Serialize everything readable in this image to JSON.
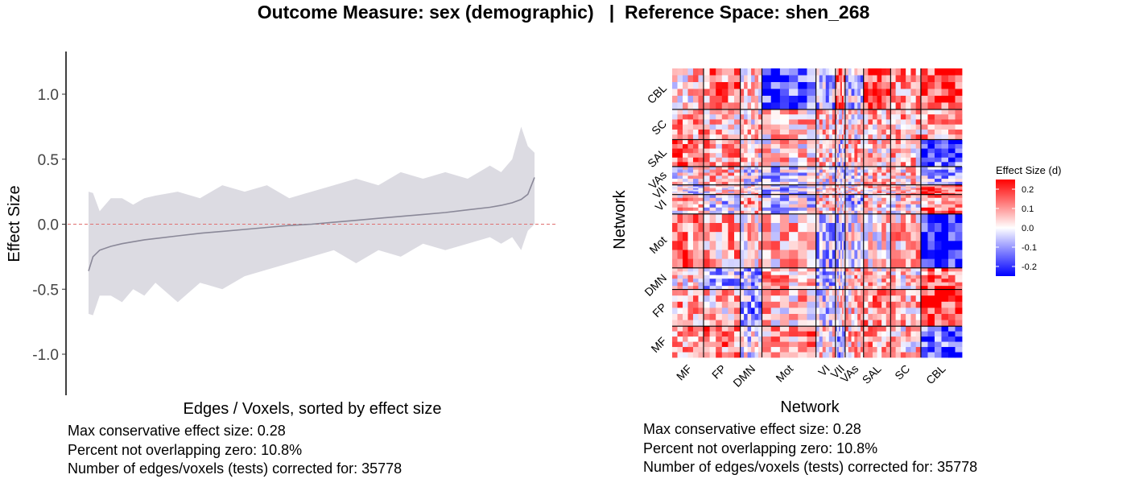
{
  "title": "Outcome Measure: sex (demographic)   |  Reference Space: shen_268",
  "chart_data": [
    {
      "type": "area",
      "xlabel": "Edges / Voxels, sorted by effect size",
      "ylabel": "Effect Size",
      "ylim": [
        -1.3,
        1.3
      ],
      "yticks": [
        1.0,
        0.5,
        0.0,
        -0.5,
        -1.0
      ],
      "ytick_labels": [
        "1.0",
        "0.5",
        "0.0",
        "-0.5",
        "-1.0"
      ],
      "reference_line": 0.0,
      "x": [
        0,
        0.01,
        0.025,
        0.05,
        0.075,
        0.1,
        0.125,
        0.15,
        0.2,
        0.25,
        0.3,
        0.35,
        0.4,
        0.45,
        0.5,
        0.55,
        0.6,
        0.65,
        0.7,
        0.75,
        0.8,
        0.85,
        0.9,
        0.925,
        0.95,
        0.97,
        0.985,
        1.0
      ],
      "estimate": [
        -0.36,
        -0.25,
        -0.2,
        -0.17,
        -0.15,
        -0.135,
        -0.12,
        -0.11,
        -0.09,
        -0.07,
        -0.055,
        -0.04,
        -0.025,
        -0.01,
        0.0,
        0.015,
        0.03,
        0.045,
        0.06,
        0.075,
        0.09,
        0.11,
        0.13,
        0.145,
        0.165,
        0.19,
        0.23,
        0.36
      ],
      "upper": [
        0.25,
        0.24,
        0.1,
        0.2,
        0.2,
        0.15,
        0.2,
        0.22,
        0.25,
        0.2,
        0.3,
        0.25,
        0.3,
        0.2,
        0.25,
        0.3,
        0.35,
        0.3,
        0.4,
        0.35,
        0.4,
        0.35,
        0.45,
        0.4,
        0.5,
        0.75,
        0.6,
        0.55
      ],
      "lower": [
        -0.69,
        -0.7,
        -0.55,
        -0.55,
        -0.6,
        -0.5,
        -0.55,
        -0.45,
        -0.6,
        -0.45,
        -0.5,
        -0.4,
        -0.35,
        -0.3,
        -0.25,
        -0.2,
        -0.3,
        -0.2,
        -0.25,
        -0.15,
        -0.2,
        -0.15,
        -0.1,
        -0.15,
        -0.1,
        -0.2,
        -0.05,
        0.0
      ],
      "series_color": "#8a8898",
      "band_color": "#dcdbe2",
      "reference_line_color": "#e07070",
      "stats": [
        "Max conservative effect size: 0.28",
        "Percent not overlapping zero: 10.8%",
        "Number of edges/voxels (tests) corrected for: 35778"
      ]
    },
    {
      "type": "heatmap",
      "xlabel": "Network",
      "ylabel": "Network",
      "networks": [
        "MF",
        "FP",
        "DMN",
        "Mot",
        "VI",
        "VII",
        "VAs",
        "SAL",
        "SC",
        "CBL"
      ],
      "network_sizes": [
        29,
        34,
        20,
        50,
        18,
        9,
        17,
        25,
        28,
        38
      ],
      "block_means": [
        [
          0.08,
          0.12,
          -0.02,
          0.1,
          0.02,
          -0.08,
          0.06,
          0.1,
          0.04,
          -0.16
        ],
        [
          0.1,
          0.06,
          -0.1,
          0.06,
          -0.04,
          0.02,
          0.04,
          0.1,
          0.06,
          0.2
        ],
        [
          0.04,
          -0.06,
          -0.08,
          0.08,
          -0.06,
          -0.04,
          0.06,
          0.06,
          0.04,
          0.14
        ],
        [
          0.12,
          0.08,
          0.04,
          0.06,
          -0.06,
          -0.06,
          -0.02,
          0.02,
          0.08,
          -0.22
        ],
        [
          0.06,
          -0.04,
          0.08,
          -0.04,
          0.04,
          0.02,
          -0.06,
          0.04,
          0.02,
          0.12
        ],
        [
          -0.04,
          0.02,
          0.04,
          -0.06,
          0.02,
          0.06,
          0.02,
          0.06,
          0.04,
          0.18
        ],
        [
          0.0,
          0.06,
          -0.02,
          -0.06,
          0.0,
          -0.04,
          -0.02,
          0.04,
          0.04,
          -0.08
        ],
        [
          0.14,
          0.08,
          0.04,
          0.04,
          0.06,
          -0.04,
          0.06,
          0.04,
          0.06,
          -0.16
        ],
        [
          0.08,
          0.06,
          0.04,
          0.06,
          0.06,
          0.04,
          0.02,
          0.06,
          0.08,
          0.08
        ],
        [
          0.04,
          0.12,
          0.04,
          -0.16,
          -0.08,
          0.14,
          -0.06,
          0.18,
          0.1,
          0.18
        ]
      ],
      "legend": {
        "title": "Effect Size (d)",
        "ticks": [
          0.2,
          0.1,
          0.0,
          -0.1,
          -0.2
        ],
        "tick_labels": [
          "0.2",
          "0.1",
          "0.0",
          "-0.1",
          "-0.2"
        ],
        "range": [
          -0.25,
          0.25
        ],
        "position": "right",
        "low_color": "#0000ff",
        "mid_color": "#ffffff",
        "high_color": "#ff0000"
      },
      "stats": [
        "Max conservative effect size: 0.28",
        "Percent not overlapping zero: 10.8%",
        "Number of edges/voxels (tests) corrected for: 35778"
      ]
    }
  ]
}
